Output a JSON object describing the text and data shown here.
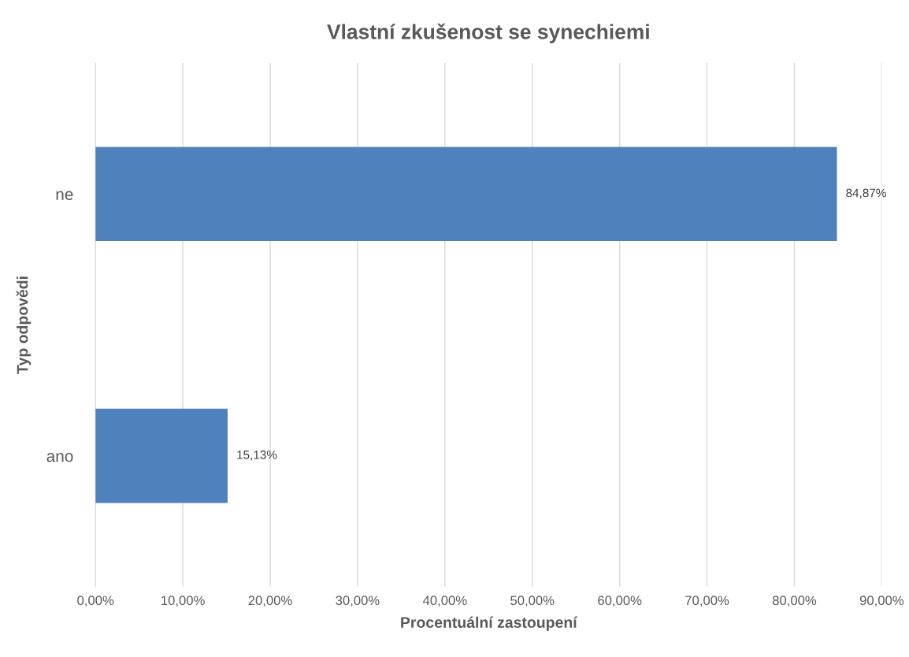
{
  "chart_data": {
    "type": "bar",
    "orientation": "horizontal",
    "title": "Vlastní zkušenost se synechiemi",
    "xlabel": "Procentuální zastoupení",
    "ylabel": "Typ odpovědi",
    "categories": [
      "ne",
      "ano"
    ],
    "series": [
      {
        "color": "#4f81bd",
        "values": [
          84.87,
          15.13
        ],
        "value_labels": [
          "84,87%",
          "15,13%"
        ]
      }
    ],
    "xlim": [
      0,
      90
    ],
    "xticks": [
      {
        "value": 0,
        "label": "0,00%"
      },
      {
        "value": 10,
        "label": "10,00%"
      },
      {
        "value": 20,
        "label": "20,00%"
      },
      {
        "value": 30,
        "label": "30,00%"
      },
      {
        "value": 40,
        "label": "40,00%"
      },
      {
        "value": 50,
        "label": "50,00%"
      },
      {
        "value": 60,
        "label": "60,00%"
      },
      {
        "value": 70,
        "label": "70,00%"
      },
      {
        "value": 80,
        "label": "80,00%"
      },
      {
        "value": 90,
        "label": "90,00%"
      }
    ],
    "grid": "x",
    "legend": false
  }
}
